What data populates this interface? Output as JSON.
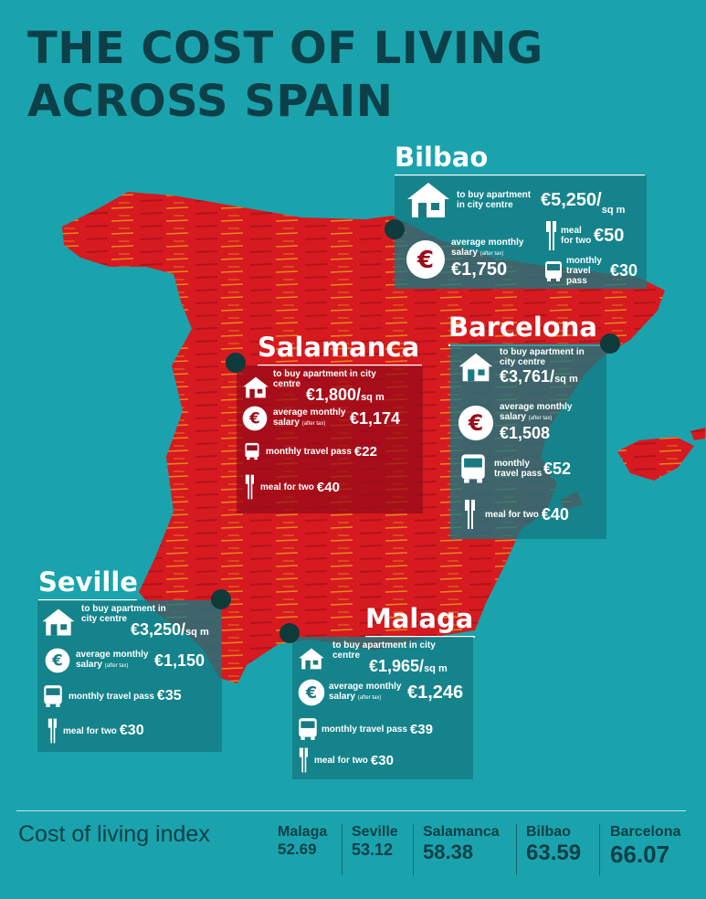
{
  "title": {
    "line1": "THE COST OF LIVING",
    "line2": "ACROSS SPAIN"
  },
  "colors": {
    "background": "#1aa3ad",
    "map": "#d61a1f",
    "title": "#0c3f48"
  },
  "cities": {
    "bilbao": {
      "name": "Bilbao",
      "apartment_label": "to buy apartment in city centre",
      "apartment_value": "€5,250/",
      "apartment_unit": "sq m",
      "meal_label": "meal for two",
      "meal_value": "€50",
      "salary_label": "average monthly salary",
      "salary_note": "(after tax)",
      "salary_value": "€1,750",
      "travel_label": "monthly travel pass",
      "travel_value": "€30"
    },
    "salamanca": {
      "name": "Salamanca",
      "apartment_label": "to buy apartment in city centre",
      "apartment_value": "€1,800/",
      "apartment_unit": "sq m",
      "salary_label": "average monthly salary",
      "salary_note": "(after tax)",
      "salary_value": "€1,174",
      "travel_label": "monthly travel pass",
      "travel_value": "€22",
      "meal_label": "meal for two",
      "meal_value": "€40"
    },
    "barcelona": {
      "name": "Barcelona",
      "apartment_label": "to buy apartment in city centre",
      "apartment_value": "€3,761/",
      "apartment_unit": "sq m",
      "salary_label": "average monthly salary",
      "salary_note": "(after tax)",
      "salary_value": "€1,508",
      "travel_label": "monthly travel pass",
      "travel_value": "€52",
      "meal_label": "meal for two",
      "meal_value": "€40"
    },
    "seville": {
      "name": "Seville",
      "apartment_label": "to buy apartment in city centre",
      "apartment_value": "€3,250/",
      "apartment_unit": "sq m",
      "salary_label": "average monthly salary",
      "salary_note": "(after tax)",
      "salary_value": "€1,150",
      "travel_label": "monthly travel pass",
      "travel_value": "€35",
      "meal_label": "meal for two",
      "meal_value": "€30"
    },
    "malaga": {
      "name": "Malaga",
      "apartment_label": "to buy apartment in city centre",
      "apartment_value": "€1,965/",
      "apartment_unit": "sq m",
      "salary_label": "average monthly salary",
      "salary_note": "(after tax)",
      "salary_value": "€1,246",
      "travel_label": "monthly travel pass",
      "travel_value": "€39",
      "meal_label": "meal for two",
      "meal_value": "€30"
    }
  },
  "index": {
    "title": "Cost of living index",
    "entries": [
      {
        "name": "Malaga",
        "value": "52.69"
      },
      {
        "name": "Seville",
        "value": "53.12"
      },
      {
        "name": "Salamanca",
        "value": "58.38"
      },
      {
        "name": "Bilbao",
        "value": "63.59"
      },
      {
        "name": "Barcelona",
        "value": "66.07"
      }
    ]
  }
}
